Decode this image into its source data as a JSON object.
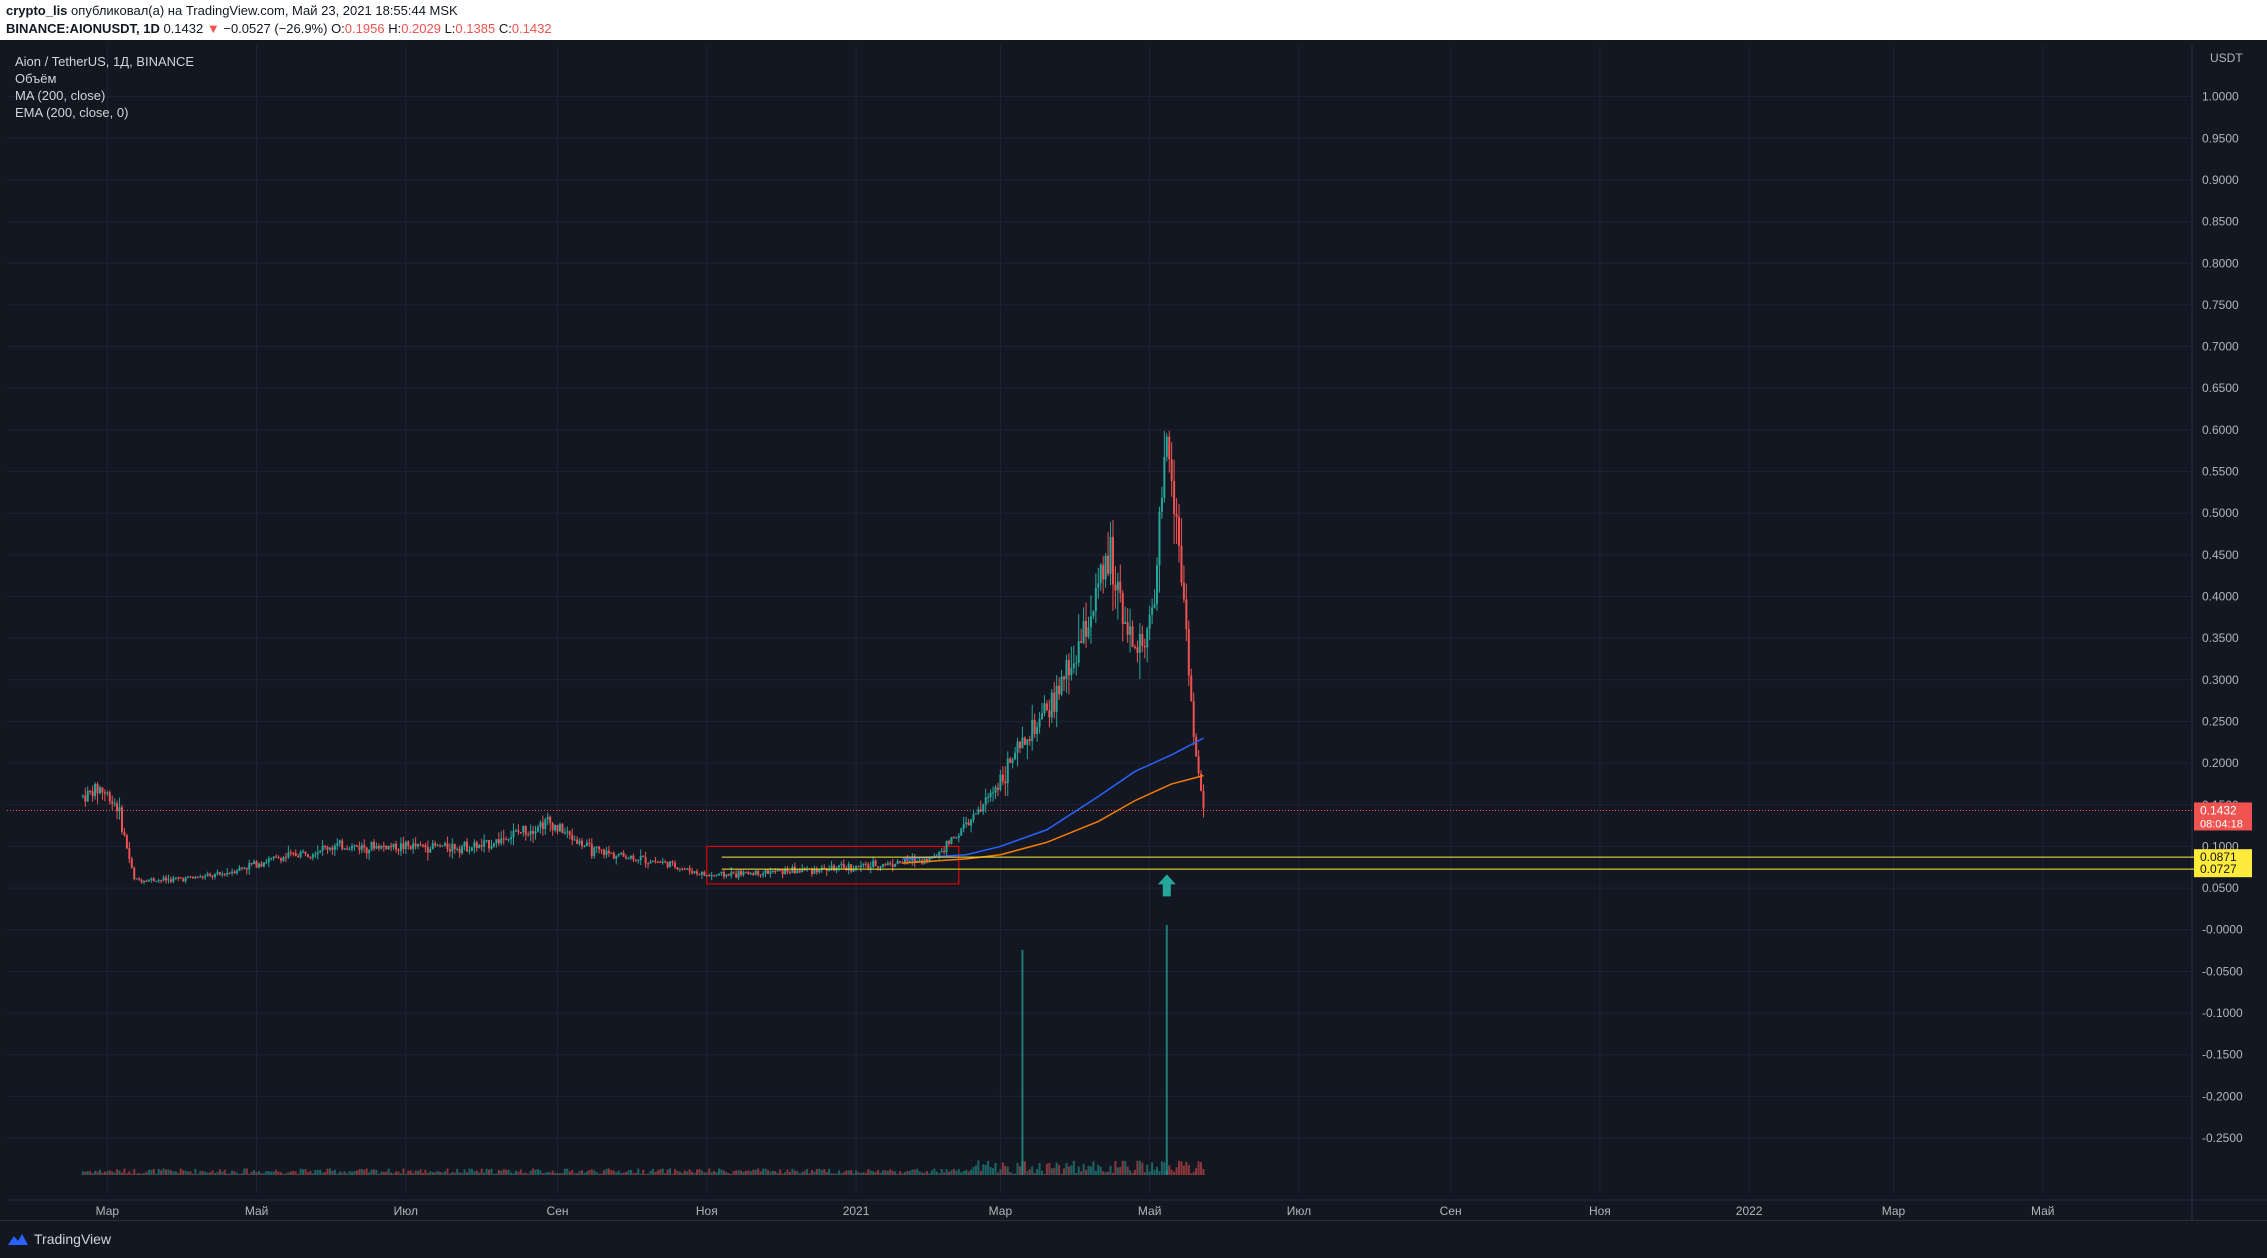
{
  "header": {
    "author": "crypto_lis",
    "published_text": "опубликовал(а) на TradingView.com, Май 23, 2021 18:55:44 MSK",
    "symbol_line": "BINANCE:AIONUSDT, 1D",
    "last": "0.1432",
    "change": "−0.0527 (−26.9%)",
    "o_label": "O:",
    "o_value": "0.1956",
    "h_label": "H:",
    "h_value": "0.2029",
    "l_label": "L:",
    "l_value": "0.1385",
    "c_label": "C:",
    "c_value": "0.1432"
  },
  "legend": {
    "title": "Aion / TetherUS, 1Д, BINANCE",
    "volume": "Объём",
    "ma": "MA (200, close)",
    "ema": "EMA (200, close, 0)"
  },
  "footer": {
    "brand": "TradingView"
  },
  "colors": {
    "background": "#131722",
    "up": "#26a69a",
    "down": "#ef5350",
    "ma": "#2962ff",
    "ema": "#f57c00",
    "level": "#ffeb3b",
    "box": "#ff0000"
  },
  "chart_data": {
    "type": "candlestick",
    "currency_label": "USDT",
    "ylim": [
      -0.28,
      1.05
    ],
    "y_ticks": [
      "1.0000",
      "0.9500",
      "0.9000",
      "0.8500",
      "0.8000",
      "0.7500",
      "0.7000",
      "0.6500",
      "0.6000",
      "0.5500",
      "0.5000",
      "0.4500",
      "0.4000",
      "0.3500",
      "0.3000",
      "0.2500",
      "0.2000",
      "0.1500",
      "0.1000",
      "0.0500",
      "-0.0000",
      "-0.0500",
      "-0.1000",
      "-0.1500",
      "-0.2000",
      "-0.2500"
    ],
    "x_range": [
      "2020-01-20",
      "2022-07-01"
    ],
    "x_ticks": [
      {
        "date": "2020-03-01",
        "label": "Мар"
      },
      {
        "date": "2020-05-01",
        "label": "Май"
      },
      {
        "date": "2020-07-01",
        "label": "Июл"
      },
      {
        "date": "2020-09-01",
        "label": "Сен"
      },
      {
        "date": "2020-11-01",
        "label": "Ноя"
      },
      {
        "date": "2021-01-01",
        "label": "2021"
      },
      {
        "date": "2021-03-01",
        "label": "Мар"
      },
      {
        "date": "2021-05-01",
        "label": "Май"
      },
      {
        "date": "2021-07-01",
        "label": "Июл"
      },
      {
        "date": "2021-09-01",
        "label": "Сен"
      },
      {
        "date": "2021-11-01",
        "label": "Ноя"
      },
      {
        "date": "2022-01-01",
        "label": "2022"
      },
      {
        "date": "2022-03-01",
        "label": "Мар"
      },
      {
        "date": "2022-05-01",
        "label": "Май"
      }
    ],
    "close_series": [
      {
        "date": "2020-02-20",
        "value": 0.16
      },
      {
        "date": "2020-02-27",
        "value": 0.17
      },
      {
        "date": "2020-03-05",
        "value": 0.15
      },
      {
        "date": "2020-03-12",
        "value": 0.06
      },
      {
        "date": "2020-03-26",
        "value": 0.06
      },
      {
        "date": "2020-04-15",
        "value": 0.065
      },
      {
        "date": "2020-05-01",
        "value": 0.08
      },
      {
        "date": "2020-06-01",
        "value": 0.1
      },
      {
        "date": "2020-07-01",
        "value": 0.1
      },
      {
        "date": "2020-08-01",
        "value": 0.1
      },
      {
        "date": "2020-08-28",
        "value": 0.13
      },
      {
        "date": "2020-09-15",
        "value": 0.095
      },
      {
        "date": "2020-10-15",
        "value": 0.08
      },
      {
        "date": "2020-11-01",
        "value": 0.065
      },
      {
        "date": "2020-12-01",
        "value": 0.07
      },
      {
        "date": "2021-01-01",
        "value": 0.075
      },
      {
        "date": "2021-02-01",
        "value": 0.085
      },
      {
        "date": "2021-02-20",
        "value": 0.14
      },
      {
        "date": "2021-03-05",
        "value": 0.2
      },
      {
        "date": "2021-03-20",
        "value": 0.26
      },
      {
        "date": "2021-04-01",
        "value": 0.33
      },
      {
        "date": "2021-04-15",
        "value": 0.45
      },
      {
        "date": "2021-04-25",
        "value": 0.33
      },
      {
        "date": "2021-05-03",
        "value": 0.38
      },
      {
        "date": "2021-05-08",
        "value": 0.6
      },
      {
        "date": "2021-05-12",
        "value": 0.5
      },
      {
        "date": "2021-05-16",
        "value": 0.36
      },
      {
        "date": "2021-05-19",
        "value": 0.23
      },
      {
        "date": "2021-05-23",
        "value": 0.1432
      }
    ],
    "ma_series": [
      {
        "date": "2021-01-20",
        "value": 0.085
      },
      {
        "date": "2021-02-15",
        "value": 0.09
      },
      {
        "date": "2021-03-01",
        "value": 0.1
      },
      {
        "date": "2021-03-20",
        "value": 0.12
      },
      {
        "date": "2021-04-10",
        "value": 0.16
      },
      {
        "date": "2021-04-25",
        "value": 0.19
      },
      {
        "date": "2021-05-10",
        "value": 0.21
      },
      {
        "date": "2021-05-23",
        "value": 0.23
      }
    ],
    "ema_series": [
      {
        "date": "2021-01-20",
        "value": 0.08
      },
      {
        "date": "2021-02-15",
        "value": 0.085
      },
      {
        "date": "2021-03-01",
        "value": 0.09
      },
      {
        "date": "2021-03-20",
        "value": 0.105
      },
      {
        "date": "2021-04-10",
        "value": 0.13
      },
      {
        "date": "2021-04-25",
        "value": 0.155
      },
      {
        "date": "2021-05-10",
        "value": 0.175
      },
      {
        "date": "2021-05-23",
        "value": 0.185
      }
    ],
    "volume_spikes": [
      {
        "date": "2021-03-10",
        "value": 0.9
      },
      {
        "date": "2021-05-08",
        "value": 1.0
      }
    ],
    "levels": [
      {
        "value": 0.0871,
        "label": "0.0871"
      },
      {
        "value": 0.0727,
        "label": "0.0727"
      }
    ],
    "current_price": {
      "value": 0.1432,
      "label": "0.1432",
      "countdown": "08:04:18"
    },
    "annotation_box": {
      "x0": "2020-11-01",
      "x1": "2021-02-12",
      "y0": 0.055,
      "y1": 0.1
    },
    "arrow": {
      "date": "2021-05-08",
      "value": 0.04
    }
  }
}
